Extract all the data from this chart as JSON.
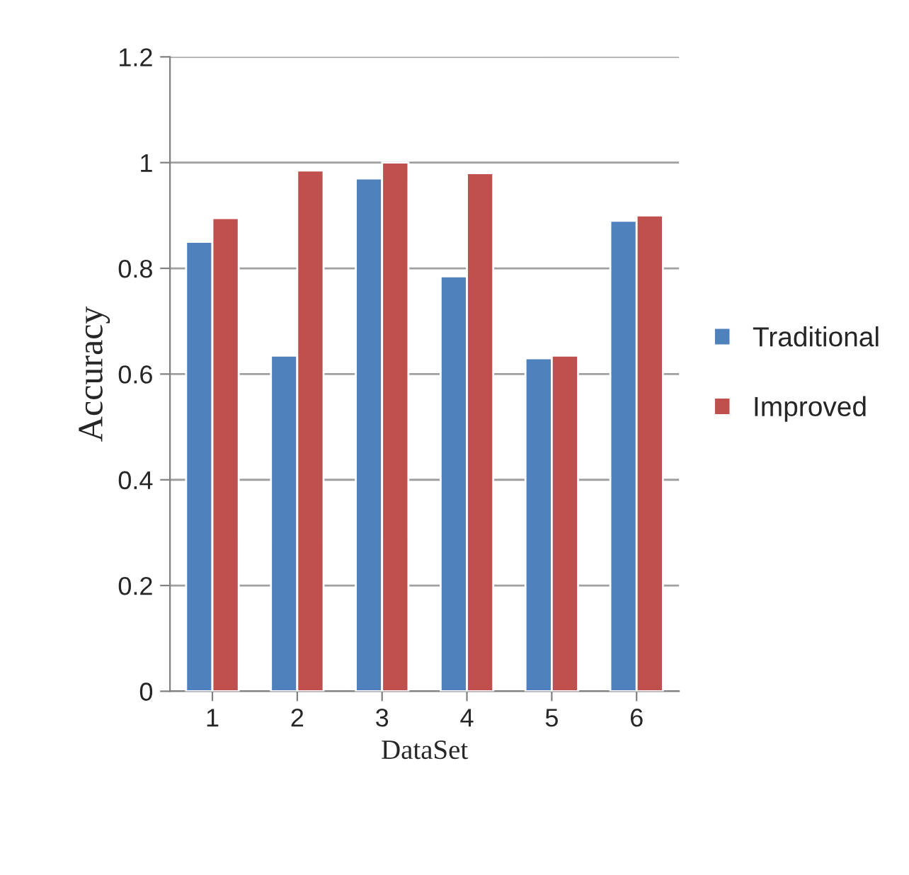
{
  "chart_data": {
    "type": "bar",
    "xlabel": "DataSet",
    "ylabel": "Accuracy",
    "categories": [
      "1",
      "2",
      "3",
      "4",
      "5",
      "6"
    ],
    "series": [
      {
        "name": "Traditional",
        "color": "#4f81bd",
        "values": [
          0.85,
          0.635,
          0.97,
          0.785,
          0.63,
          0.89
        ]
      },
      {
        "name": "Improved",
        "color": "#c0504d",
        "values": [
          0.895,
          0.985,
          1.0,
          0.98,
          0.635,
          0.9
        ]
      }
    ],
    "ylim": [
      0,
      1.2
    ],
    "yticks": [
      0,
      0.2,
      0.4,
      0.6,
      0.8,
      1,
      1.2
    ],
    "grid": "y",
    "legend": "right"
  }
}
